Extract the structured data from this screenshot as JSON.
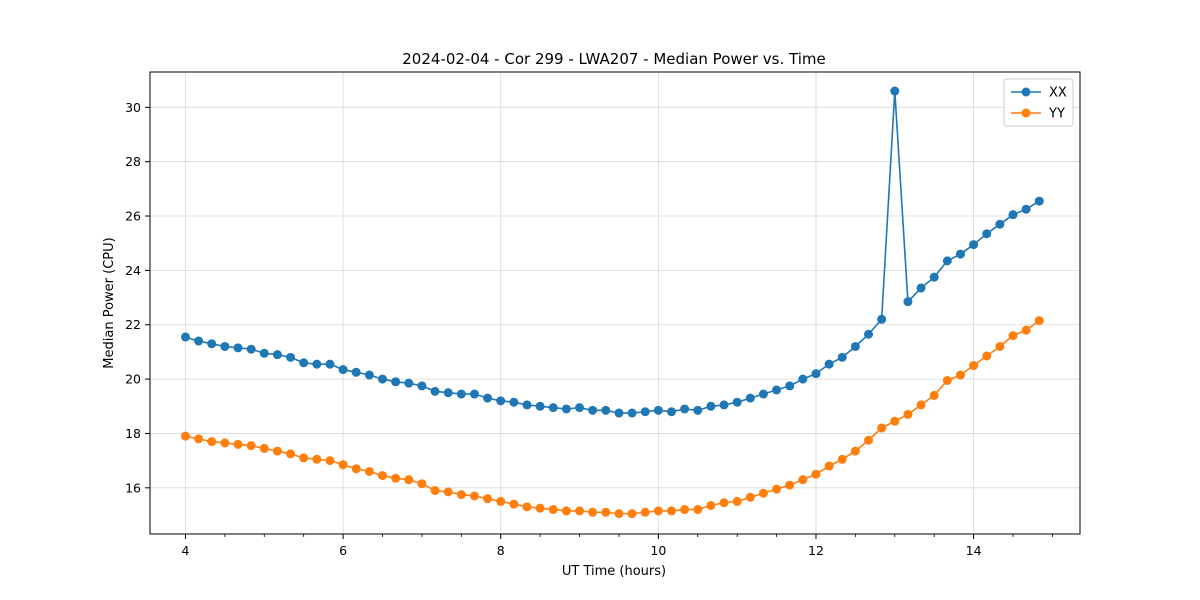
{
  "chart_data": {
    "type": "line",
    "title": "2024-02-04 - Cor 299 - LWA207 - Median Power vs. Time",
    "xlabel": "UT Time (hours)",
    "ylabel": "Median Power (CPU)",
    "xlim": [
      3.55,
      15.35
    ],
    "ylim": [
      14.3,
      31.3
    ],
    "xticks": [
      4,
      6,
      8,
      10,
      12,
      14
    ],
    "yticks": [
      16,
      18,
      20,
      22,
      24,
      26,
      28,
      30
    ],
    "grid": true,
    "legend_position": "top-right",
    "x": [
      4.0,
      4.1667,
      4.3333,
      4.5,
      4.6667,
      4.8333,
      5.0,
      5.1667,
      5.3333,
      5.5,
      5.6667,
      5.8333,
      6.0,
      6.1667,
      6.3333,
      6.5,
      6.6667,
      6.8333,
      7.0,
      7.1667,
      7.3333,
      7.5,
      7.6667,
      7.8333,
      8.0,
      8.1667,
      8.3333,
      8.5,
      8.6667,
      8.8333,
      9.0,
      9.1667,
      9.3333,
      9.5,
      9.6667,
      9.8333,
      10.0,
      10.1667,
      10.3333,
      10.5,
      10.6667,
      10.8333,
      11.0,
      11.1667,
      11.3333,
      11.5,
      11.6667,
      11.8333,
      12.0,
      12.1667,
      12.3333,
      12.5,
      12.6667,
      12.8333,
      13.0,
      13.1667,
      13.3333,
      13.5,
      13.6667,
      13.8333,
      14.0,
      14.1667,
      14.3333,
      14.5,
      14.6667,
      14.8333
    ],
    "series": [
      {
        "name": "XX",
        "color": "#1f77b4",
        "values": [
          21.55,
          21.4,
          21.3,
          21.2,
          21.15,
          21.1,
          20.95,
          20.9,
          20.8,
          20.6,
          20.55,
          20.55,
          20.35,
          20.25,
          20.15,
          20.0,
          19.9,
          19.85,
          19.75,
          19.55,
          19.5,
          19.45,
          19.45,
          19.3,
          19.2,
          19.15,
          19.05,
          19.0,
          18.95,
          18.9,
          18.95,
          18.85,
          18.85,
          18.75,
          18.75,
          18.8,
          18.85,
          18.8,
          18.9,
          18.85,
          19.0,
          19.05,
          19.15,
          19.3,
          19.45,
          19.6,
          19.75,
          20.0,
          20.2,
          20.55,
          20.8,
          21.2,
          21.65,
          22.2,
          30.6,
          22.85,
          23.35,
          23.75,
          24.35,
          24.6,
          24.95,
          25.35,
          25.7,
          26.05,
          26.25,
          26.55
        ]
      },
      {
        "name": "YY",
        "color": "#ff7f0e",
        "values": [
          17.9,
          17.8,
          17.7,
          17.65,
          17.6,
          17.55,
          17.45,
          17.35,
          17.25,
          17.1,
          17.05,
          17.0,
          16.85,
          16.7,
          16.6,
          16.45,
          16.35,
          16.3,
          16.15,
          15.9,
          15.85,
          15.75,
          15.7,
          15.6,
          15.5,
          15.4,
          15.3,
          15.25,
          15.2,
          15.15,
          15.15,
          15.1,
          15.1,
          15.05,
          15.05,
          15.1,
          15.15,
          15.15,
          15.2,
          15.2,
          15.35,
          15.45,
          15.5,
          15.65,
          15.8,
          15.95,
          16.1,
          16.3,
          16.5,
          16.8,
          17.05,
          17.35,
          17.75,
          18.2,
          18.45,
          18.7,
          19.05,
          19.4,
          19.95,
          20.15,
          20.5,
          20.85,
          21.2,
          21.6,
          21.8,
          22.15
        ]
      }
    ]
  }
}
